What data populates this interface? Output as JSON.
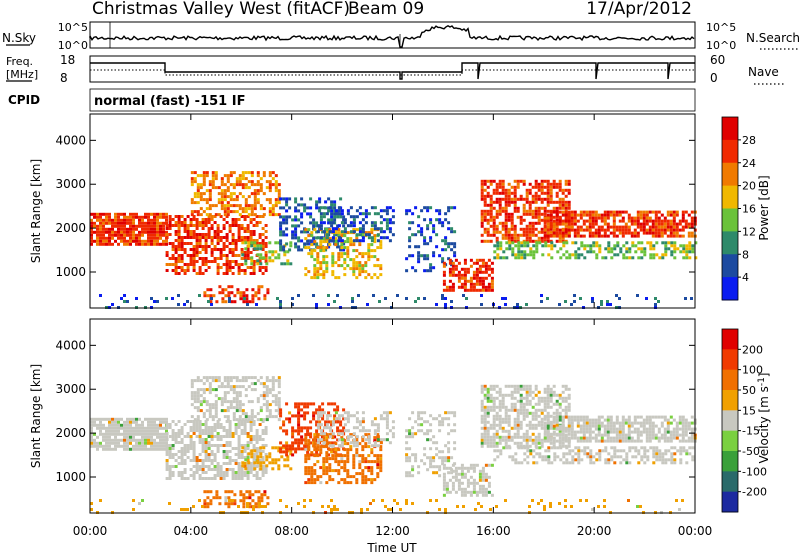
{
  "header": {
    "station": "Christmas Valley West (fitACF)",
    "beam": "Beam 09",
    "date": "17/Apr/2012"
  },
  "top_panels": {
    "nsky_label": "N.Sky",
    "nsearch_label": "N.Search",
    "noise_ticks_left": [
      "10^5",
      "10^0"
    ],
    "noise_ticks_right": [
      "10^5",
      "10^0"
    ],
    "freq_label_line1": "Freq.",
    "freq_label_line2": "[MHz]",
    "freq_ticks": [
      "18",
      "8"
    ],
    "nave_label": "Nave",
    "nave_ticks": [
      "60",
      "0"
    ],
    "cpid_label": "CPID",
    "cpid_text": "normal (fast) -151 IF"
  },
  "chart_data": [
    {
      "type": "heatmap",
      "title": "",
      "xlabel": "",
      "ylabel": "Slant Range [km]",
      "x_ticks": [
        "00:00",
        "04:00",
        "08:00",
        "12:00",
        "16:00",
        "20:00",
        "00:00"
      ],
      "x_range_hours": [
        0,
        24
      ],
      "y_ticks": [
        1000,
        2000,
        3000,
        4000
      ],
      "ylim": [
        180,
        4600
      ],
      "colorbar": {
        "label": "Power [dB]",
        "ticks": [
          4,
          8,
          12,
          16,
          20,
          24,
          28
        ],
        "colors": [
          "#0a1cf0",
          "#1c4aa0",
          "#2e8a6a",
          "#6ac23a",
          "#f0b800",
          "#f07a00",
          "#f02a00",
          "#e00000"
        ]
      }
    },
    {
      "type": "heatmap",
      "title": "",
      "xlabel": "Time UT",
      "ylabel": "Slant Range [km]",
      "x_ticks": [
        "00:00",
        "04:00",
        "08:00",
        "12:00",
        "16:00",
        "20:00",
        "00:00"
      ],
      "x_range_hours": [
        0,
        24
      ],
      "y_ticks": [
        1000,
        2000,
        3000,
        4000
      ],
      "ylim": [
        180,
        4600
      ],
      "colorbar": {
        "label": "Velocity [m s^-1]",
        "ticks": [
          200,
          100,
          50,
          15,
          -15,
          -50,
          -100,
          -200
        ],
        "colors": [
          "#1c2aa0",
          "#2a6a6a",
          "#3aa03a",
          "#7ad040",
          "#c8c8c0",
          "#f0a000",
          "#f07000",
          "#f03a00",
          "#e00000"
        ]
      }
    }
  ]
}
